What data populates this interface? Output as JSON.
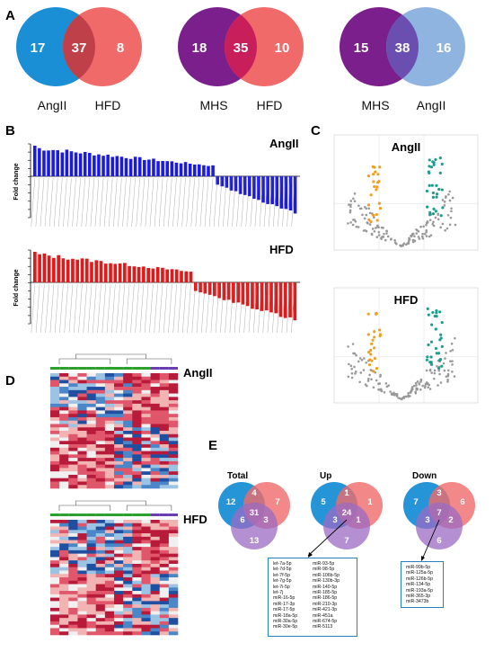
{
  "panels": {
    "A": "A",
    "B": "B",
    "C": "C",
    "D": "D",
    "E": "E"
  },
  "venns_a": [
    {
      "left_label": "AngII",
      "right_label": "HFD",
      "left": "17",
      "both": "37",
      "right": "8",
      "colors": [
        "#1a8fd6",
        "#f06a6a",
        "#c0404a"
      ]
    },
    {
      "left_label": "MHS",
      "right_label": "HFD",
      "left": "18",
      "both": "35",
      "right": "10",
      "colors": [
        "#7a1f8c",
        "#f06a6a",
        "#c81e5a"
      ]
    },
    {
      "left_label": "MHS",
      "right_label": "AngII",
      "left": "15",
      "both": "38",
      "right": "16",
      "colors": [
        "#7a1f8c",
        "#8fb4e0",
        "#6a4fb0"
      ]
    }
  ],
  "panel_b": {
    "title_top": "AngII",
    "title_bottom": "HFD",
    "ylabel": "Fold change",
    "colors": {
      "top": "#1a1ae0",
      "bottom": "#e01a1a"
    }
  },
  "panel_c": {
    "title_top": "AngII",
    "title_bottom": "HFD",
    "colors": {
      "down": "#f0a020",
      "up": "#1aa08a",
      "ns": "#999999"
    }
  },
  "panel_d": {
    "title_top": "AngII",
    "title_bottom": "HFD"
  },
  "panel_e": {
    "titles": [
      "Total",
      "Up",
      "Down"
    ],
    "venns": [
      {
        "a": "12",
        "ab": "4",
        "b": "7",
        "ac": "6",
        "abc": "31",
        "bc": "3",
        "c": "13"
      },
      {
        "a": "5",
        "ab": "1",
        "b": "1",
        "ac": "3",
        "abc": "24",
        "bc": "1",
        "c": "7"
      },
      {
        "a": "7",
        "ab": "3",
        "b": "6",
        "ac": "3",
        "abc": "7",
        "bc": "2",
        "c": "6"
      }
    ],
    "colors": [
      "#1a8fd6",
      "#f06a6a",
      "#9b6bc4"
    ],
    "up_list_col1": [
      "let-7a-5p",
      "let-7d-5p",
      "let-7f-5p",
      "let-7g-5p",
      "let-7i-5p",
      "let-7j",
      "miR-16-5p",
      "miR-17-3p",
      "miR-17-5p",
      "miR-18a-5p",
      "miR-30a-5p",
      "miR-30e-5p"
    ],
    "up_list_col2": [
      "miR-93-5p",
      "miR-98-5p",
      "miR-106b-5p",
      "miR-130b-3p",
      "miR-140-5p",
      "miR-185-5p",
      "miR-186-5p",
      "miR-210-3p",
      "miR-421-3p",
      "miR-451a",
      "miR-674-5p",
      "miR-5113"
    ],
    "down_list": [
      "miR-99b-5p",
      "miR-125a-5p",
      "miR-126b-5p",
      "miR-134-5p",
      "miR-193a-5p",
      "miR-365-3p",
      "miR-3473b"
    ]
  }
}
